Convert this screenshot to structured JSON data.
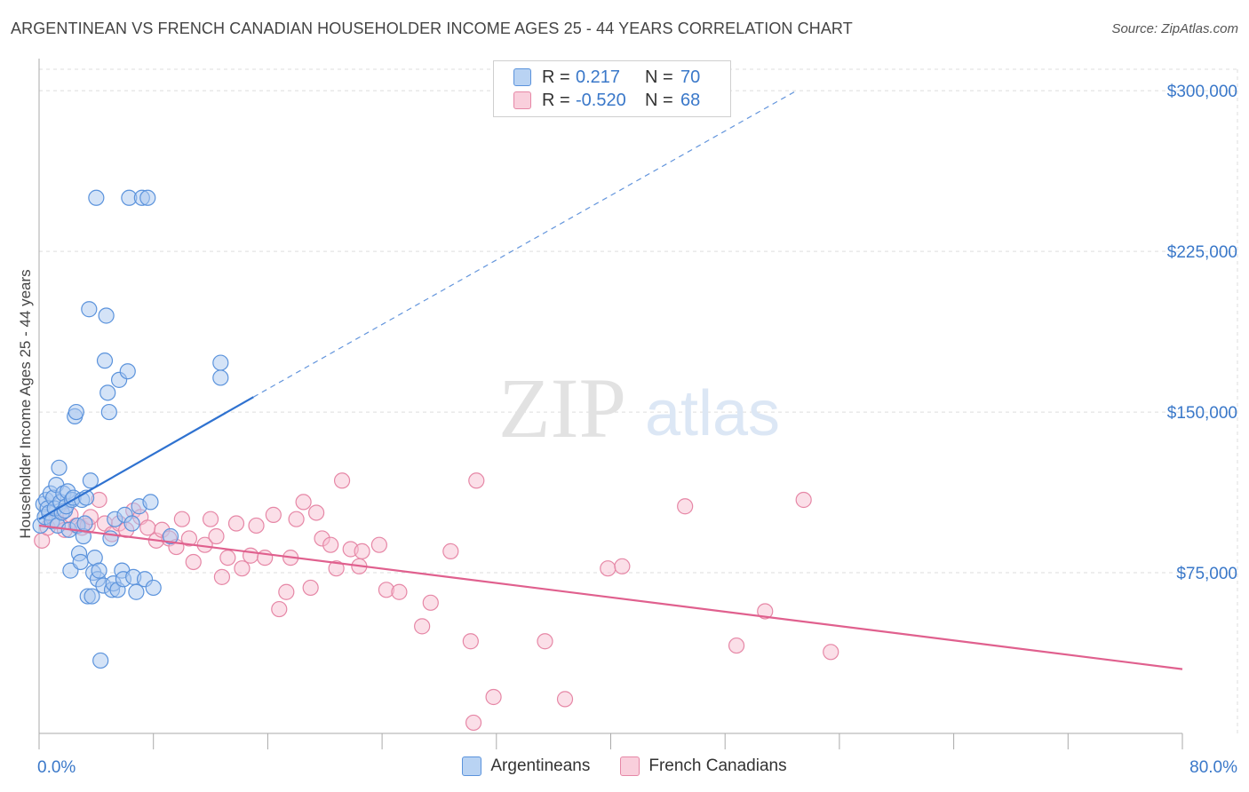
{
  "title": "ARGENTINEAN VS FRENCH CANADIAN HOUSEHOLDER INCOME AGES 25 - 44 YEARS CORRELATION CHART",
  "source": "Source: ZipAtlas.com",
  "watermark": {
    "zip": "ZIP",
    "atlas": "atlas"
  },
  "legend": {
    "rows": [
      {
        "r_label": "R =",
        "r_value": "0.217",
        "n_label": "N =",
        "n_value": "70",
        "color": "#4a86d8"
      },
      {
        "r_label": "R =",
        "r_value": "-0.520",
        "n_label": "N =",
        "n_value": "68",
        "color": "#e87ca0"
      }
    ]
  },
  "bottom_legend": [
    {
      "label": "Argentineans",
      "color": "#4a86d8"
    },
    {
      "label": "French Canadians",
      "color": "#e87ca0"
    }
  ],
  "colors": {
    "blue_fill": "#a9c8f0",
    "blue_stroke": "#5b93dc",
    "blue_line": "#2f72d0",
    "pink_fill": "#f7bfd1",
    "pink_stroke": "#e687a6",
    "pink_line": "#e0608e",
    "axis_label": "#3a78c9",
    "grid": "#dddddd"
  },
  "chart_data": {
    "type": "scatter",
    "title": "ARGENTINEAN VS FRENCH CANADIAN HOUSEHOLDER INCOME AGES 25 - 44 YEARS CORRELATION CHART",
    "xlabel": "",
    "ylabel": "Householder Income Ages 25 - 44 years",
    "xlim": [
      0,
      80
    ],
    "ylim": [
      0,
      310000
    ],
    "x_tick_labels": [
      "0.0%",
      "80.0%"
    ],
    "y_ticks": [
      75000,
      150000,
      225000,
      300000
    ],
    "y_tick_labels": [
      "$75,000",
      "$150,000",
      "$225,000",
      "$300,000"
    ],
    "grid": true,
    "legend_position": "top-center",
    "series": [
      {
        "name": "Argentineans",
        "r": 0.217,
        "n": 70,
        "trend": {
          "solid": [
            [
              0,
              100000
            ],
            [
              15,
              157000
            ]
          ],
          "dashed": [
            [
              15,
              157000
            ],
            [
              53,
              300000
            ]
          ]
        },
        "points": [
          [
            0.1,
            97000
          ],
          [
            0.3,
            107000
          ],
          [
            0.4,
            101000
          ],
          [
            0.5,
            109000
          ],
          [
            0.6,
            105000
          ],
          [
            0.7,
            103000
          ],
          [
            0.8,
            112000
          ],
          [
            0.9,
            99000
          ],
          [
            1.0,
            110000
          ],
          [
            1.1,
            105000
          ],
          [
            1.2,
            116000
          ],
          [
            1.3,
            97000
          ],
          [
            1.4,
            124000
          ],
          [
            1.5,
            108000
          ],
          [
            1.6,
            103000
          ],
          [
            1.7,
            112000
          ],
          [
            1.8,
            104000
          ],
          [
            1.9,
            106000
          ],
          [
            2.0,
            113000
          ],
          [
            2.1,
            95000
          ],
          [
            2.2,
            76000
          ],
          [
            2.3,
            109000
          ],
          [
            2.4,
            110000
          ],
          [
            2.5,
            148000
          ],
          [
            2.6,
            150000
          ],
          [
            2.7,
            97000
          ],
          [
            2.8,
            84000
          ],
          [
            2.9,
            80000
          ],
          [
            3.0,
            109000
          ],
          [
            3.1,
            92000
          ],
          [
            3.2,
            98000
          ],
          [
            3.3,
            110000
          ],
          [
            3.4,
            64000
          ],
          [
            3.5,
            198000
          ],
          [
            3.6,
            118000
          ],
          [
            3.7,
            64000
          ],
          [
            3.8,
            75000
          ],
          [
            3.9,
            82000
          ],
          [
            4.0,
            250000
          ],
          [
            4.1,
            72000
          ],
          [
            4.2,
            76000
          ],
          [
            4.3,
            34000
          ],
          [
            4.5,
            69000
          ],
          [
            4.6,
            174000
          ],
          [
            4.7,
            195000
          ],
          [
            4.8,
            159000
          ],
          [
            4.9,
            150000
          ],
          [
            5.0,
            91000
          ],
          [
            5.1,
            67000
          ],
          [
            5.2,
            70000
          ],
          [
            5.3,
            100000
          ],
          [
            5.5,
            67000
          ],
          [
            5.6,
            165000
          ],
          [
            5.8,
            76000
          ],
          [
            5.9,
            72000
          ],
          [
            6.0,
            102000
          ],
          [
            6.2,
            169000
          ],
          [
            6.3,
            250000
          ],
          [
            6.5,
            98000
          ],
          [
            6.6,
            73000
          ],
          [
            6.8,
            66000
          ],
          [
            7.0,
            106000
          ],
          [
            7.2,
            250000
          ],
          [
            7.4,
            72000
          ],
          [
            7.6,
            250000
          ],
          [
            7.8,
            108000
          ],
          [
            8.0,
            68000
          ],
          [
            9.2,
            92000
          ],
          [
            12.7,
            173000
          ],
          [
            12.7,
            166000
          ]
        ]
      },
      {
        "name": "French Canadians",
        "r": -0.52,
        "n": 68,
        "trend": {
          "solid": [
            [
              0,
              97000
            ],
            [
              80,
              30000
            ]
          ]
        },
        "points": [
          [
            0.2,
            90000
          ],
          [
            0.6,
            96000
          ],
          [
            1.2,
            99000
          ],
          [
            1.8,
            95000
          ],
          [
            2.2,
            102000
          ],
          [
            2.6,
            97000
          ],
          [
            3.0,
            96000
          ],
          [
            3.4,
            97000
          ],
          [
            3.6,
            101000
          ],
          [
            4.2,
            109000
          ],
          [
            4.6,
            98000
          ],
          [
            5.1,
            93000
          ],
          [
            5.6,
            98000
          ],
          [
            6.1,
            95000
          ],
          [
            6.6,
            104000
          ],
          [
            7.1,
            101000
          ],
          [
            7.6,
            96000
          ],
          [
            8.2,
            90000
          ],
          [
            8.6,
            95000
          ],
          [
            9.1,
            91000
          ],
          [
            9.6,
            87000
          ],
          [
            10.0,
            100000
          ],
          [
            10.5,
            91000
          ],
          [
            10.8,
            80000
          ],
          [
            11.6,
            88000
          ],
          [
            12.0,
            100000
          ],
          [
            12.4,
            92000
          ],
          [
            12.8,
            73000
          ],
          [
            13.2,
            82000
          ],
          [
            13.8,
            98000
          ],
          [
            14.2,
            77000
          ],
          [
            14.8,
            83000
          ],
          [
            15.2,
            97000
          ],
          [
            15.8,
            82000
          ],
          [
            16.4,
            102000
          ],
          [
            16.8,
            58000
          ],
          [
            17.3,
            66000
          ],
          [
            17.6,
            82000
          ],
          [
            18.0,
            100000
          ],
          [
            18.5,
            108000
          ],
          [
            19.0,
            68000
          ],
          [
            19.4,
            103000
          ],
          [
            19.8,
            91000
          ],
          [
            20.4,
            88000
          ],
          [
            20.8,
            77000
          ],
          [
            21.2,
            118000
          ],
          [
            21.8,
            86000
          ],
          [
            22.4,
            78000
          ],
          [
            22.6,
            85000
          ],
          [
            23.8,
            88000
          ],
          [
            24.3,
            67000
          ],
          [
            25.2,
            66000
          ],
          [
            26.8,
            50000
          ],
          [
            27.4,
            61000
          ],
          [
            28.8,
            85000
          ],
          [
            30.2,
            43000
          ],
          [
            30.6,
            118000
          ],
          [
            31.8,
            17000
          ],
          [
            35.4,
            43000
          ],
          [
            36.8,
            16000
          ],
          [
            39.8,
            77000
          ],
          [
            40.8,
            78000
          ],
          [
            45.2,
            106000
          ],
          [
            48.8,
            41000
          ],
          [
            50.8,
            57000
          ],
          [
            53.5,
            109000
          ],
          [
            55.4,
            38000
          ],
          [
            30.4,
            5000
          ]
        ]
      }
    ]
  }
}
